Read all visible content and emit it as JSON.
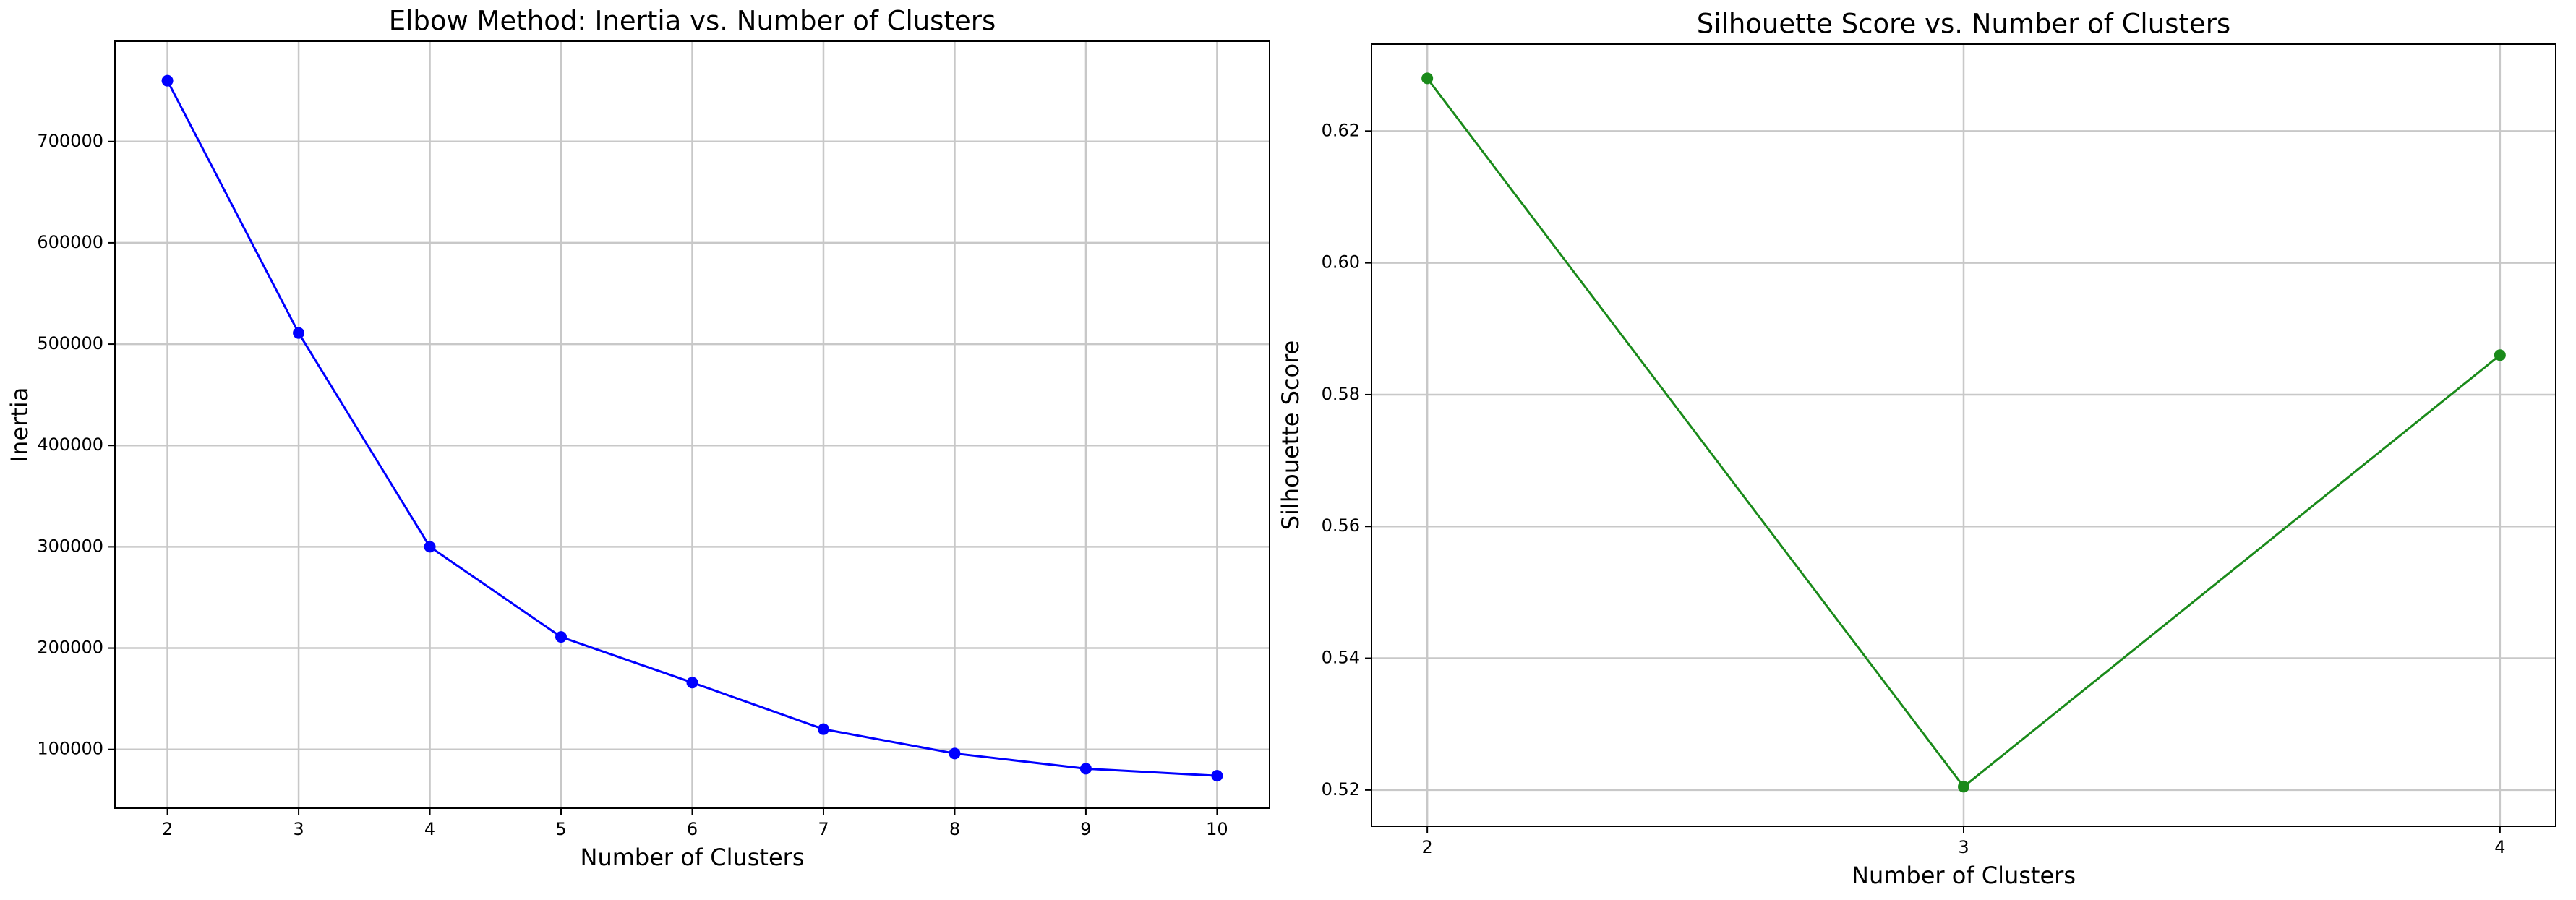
{
  "chart_data": [
    {
      "type": "line",
      "title": "Elbow Method: Inertia vs. Number of Clusters",
      "xlabel": "Number of Clusters",
      "ylabel": "Inertia",
      "x": [
        2,
        3,
        4,
        5,
        6,
        7,
        8,
        9,
        10
      ],
      "values": [
        760000,
        511000,
        300000,
        211000,
        166000,
        120000,
        96000,
        81000,
        74000
      ],
      "color": "#0000ff",
      "xlim": [
        1.6,
        10.4
      ],
      "xticks": [
        2,
        3,
        4,
        5,
        6,
        7,
        8,
        9,
        10
      ],
      "ylim": [
        42000,
        799000
      ],
      "yticks": [
        100000,
        200000,
        300000,
        400000,
        500000,
        600000,
        700000
      ],
      "grid": true
    },
    {
      "type": "line",
      "title": "Silhouette Score vs. Number of Clusters",
      "xlabel": "Number of Clusters",
      "ylabel": "Silhouette Score",
      "x": [
        2,
        3,
        4
      ],
      "values": [
        0.628,
        0.5205,
        0.586
      ],
      "color": "#1a8a1a",
      "xlim": [
        1.896,
        4.104
      ],
      "xticks": [
        2,
        3,
        4
      ],
      "ylim": [
        0.5145,
        0.6332
      ],
      "yticks": [
        0.52,
        0.54,
        0.56,
        0.58,
        {
          "value": 0.6,
          "label": "0.60"
        },
        0.62
      ],
      "grid": true
    }
  ]
}
